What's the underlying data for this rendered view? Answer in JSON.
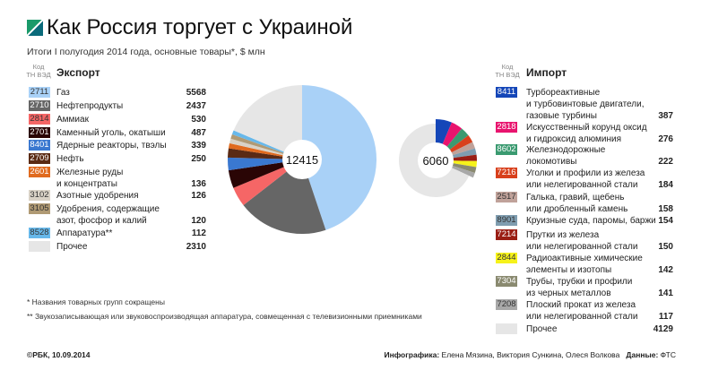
{
  "header": {
    "title": "Как Россия торгует с Украиной",
    "subtitle": "Итоги I полугодия 2014 года, основные товары*, $ млн",
    "code_header": "Код\nТН ВЭД"
  },
  "chart_data": [
    {
      "type": "pie",
      "title": "Экспорт",
      "total_label": "12415",
      "categories": [
        "Газ",
        "Нефтепродукты",
        "Аммиак",
        "Каменный уголь, окатыши",
        "Ядерные реакторы, твэлы",
        "Нефть",
        "Железные руды\nи концентраты",
        "Азотные удобрения",
        "Удобрения, содержащие\nазот, фосфор и калий",
        "Аппаратура**",
        "Прочее"
      ],
      "codes": [
        "2711",
        "2710",
        "2814",
        "2701",
        "8401",
        "2709",
        "2601",
        "3102",
        "3105",
        "8528",
        ""
      ],
      "values": [
        5568,
        2437,
        530,
        487,
        339,
        250,
        136,
        126,
        120,
        112,
        2310
      ],
      "colors": [
        "#a9d1f7",
        "#666666",
        "#f56666",
        "#2a0505",
        "#3a78d0",
        "#5a2a14",
        "#e06a1e",
        "#d9d2c6",
        "#b09a74",
        "#67b8ea",
        "#e6e6e6"
      ],
      "text_colors": [
        "#333",
        "#fff",
        "#333",
        "#fff",
        "#fff",
        "#fff",
        "#fff",
        "#333",
        "#333",
        "#333",
        "#333"
      ]
    },
    {
      "type": "pie",
      "title": "Импорт",
      "total_label": "6060",
      "categories": [
        "Турбореактивные\nи турбовинтовые двигатели,\nгазовые турбины",
        "Искусственный корунд оксид\nи гидроксид алюминия",
        "Железнодорожные\nлокомотивы",
        "Уголки и профили из железа\nили нелегированной стали",
        "Галька, гравий, щебень\nили дробленный камень",
        "Круизные суда, паромы, баржи",
        "Прутки из железа\nили нелегированной стали",
        "Радиоактивные химические\nэлементы и изотопы",
        "Трубы, трубки и профили\nиз черных металлов",
        "Плоский прокат из железа\nили нелегированной стали",
        "Прочее"
      ],
      "codes": [
        "8411",
        "2818",
        "8602",
        "7216",
        "2517",
        "8901",
        "7214",
        "2844",
        "7304",
        "7208",
        ""
      ],
      "values": [
        387,
        276,
        222,
        184,
        158,
        154,
        150,
        142,
        141,
        117,
        4129
      ],
      "colors": [
        "#1446b8",
        "#e8146e",
        "#3a9a70",
        "#d8401c",
        "#c0a29a",
        "#7f9db0",
        "#9a1e14",
        "#f6f21a",
        "#8a8a70",
        "#a8a8a8",
        "#e6e6e6"
      ],
      "text_colors": [
        "#fff",
        "#fff",
        "#fff",
        "#fff",
        "#333",
        "#333",
        "#fff",
        "#333",
        "#fff",
        "#333",
        "#333"
      ]
    }
  ],
  "notes": [
    "*   Названия товарных групп сокращены",
    "** Звукозаписывающая или звуковоспроизводящая аппаратура, совмещенная с телевизионными приемниками"
  ],
  "footer": {
    "copyright": "©РБК, 10.09.2014",
    "infographics_label": "Инфографика:",
    "infographics_authors": "Елена Мязина, Виктория Сункина, Олеся Волкова",
    "data_label": "Данные:",
    "data_source": "ФТС"
  }
}
